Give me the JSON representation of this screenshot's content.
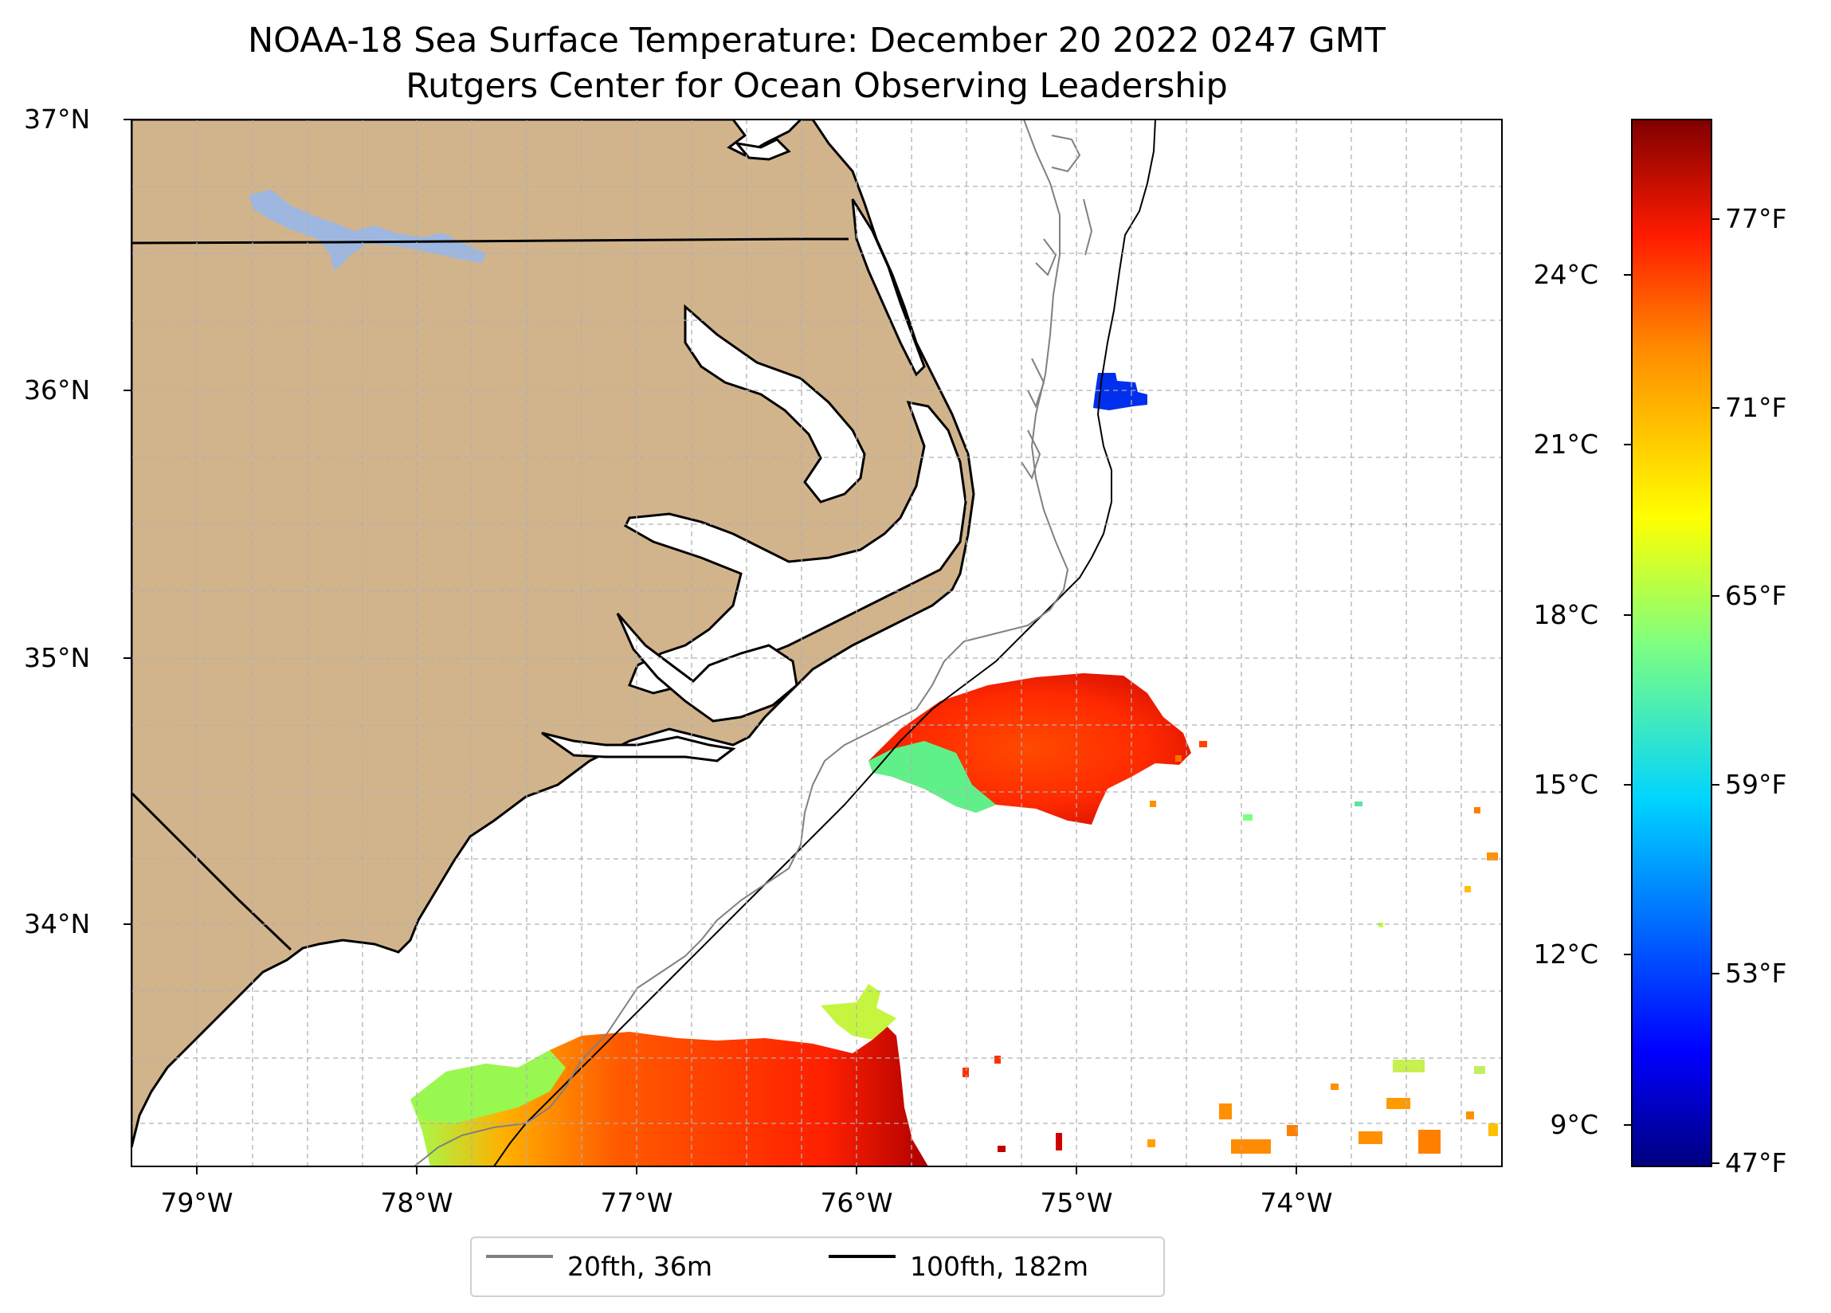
{
  "title": {
    "line1": "NOAA-18 Sea Surface Temperature: December 20 2022 0247 GMT",
    "line2": "Rutgers Center for Ocean Observing Leadership"
  },
  "axes": {
    "latitude_ticks": [
      "37°N",
      "36°N",
      "35°N",
      "34°N"
    ],
    "longitude_ticks": [
      "79°W",
      "78°W",
      "77°W",
      "76°W",
      "75°W",
      "74°W"
    ]
  },
  "colorbar": {
    "celsius_ticks": [
      "24°C",
      "21°C",
      "18°C",
      "15°C",
      "12°C",
      "9°C"
    ],
    "fahrenheit_ticks": [
      "77°F",
      "71°F",
      "65°F",
      "59°F",
      "53°F",
      "47°F"
    ],
    "colormap": "jet",
    "range_f": [
      47,
      80
    ]
  },
  "legend": {
    "items": [
      {
        "label": "20fth, 36m",
        "color": "#808080"
      },
      {
        "label": "100fth, 182m",
        "color": "#000000"
      }
    ]
  },
  "colors": {
    "land": "#d2b48c",
    "water_bodies": "#9db7e0",
    "grid": "#b0b0b0"
  }
}
